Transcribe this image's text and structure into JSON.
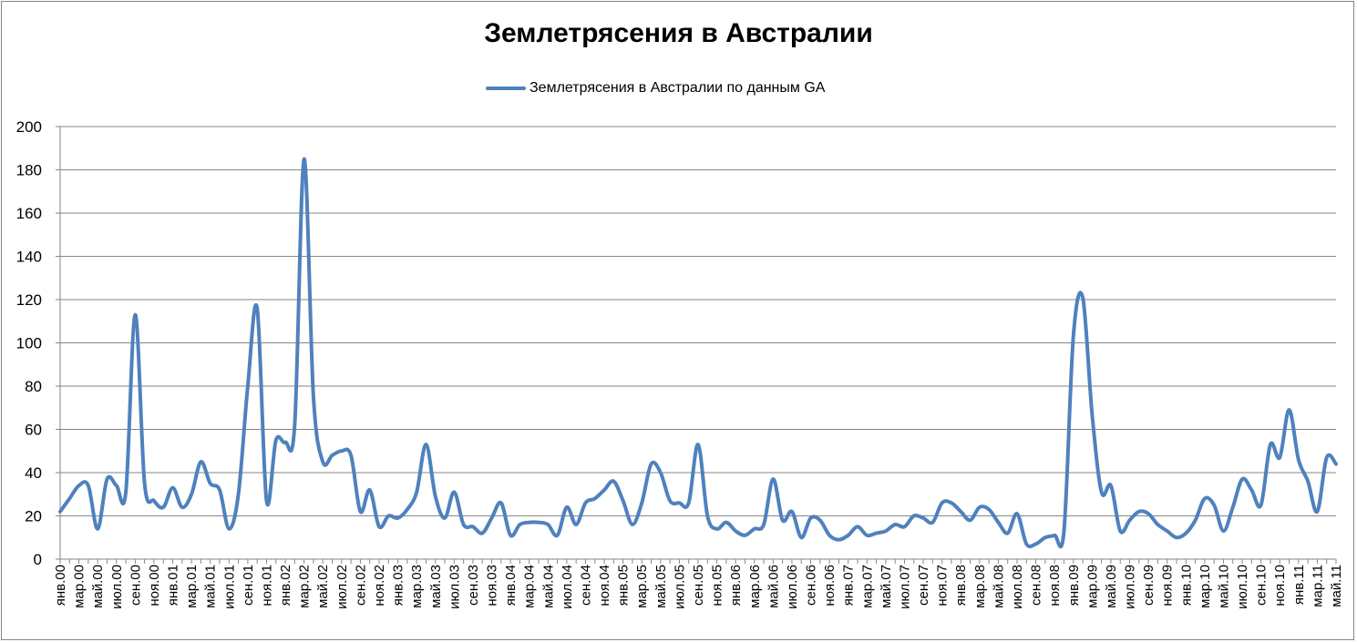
{
  "chart_data": {
    "type": "line",
    "title": "Землетрясения в Австралии",
    "legend": {
      "position": "top"
    },
    "grid": true,
    "ylim": [
      0,
      200
    ],
    "yticks": [
      0,
      20,
      40,
      60,
      80,
      100,
      120,
      140,
      160,
      180,
      200
    ],
    "color": "#4f81bd",
    "x_labels": [
      "янв.00",
      "мар.00",
      "май.00",
      "июл.00",
      "сен.00",
      "ноя.00",
      "янв.01",
      "мар.01",
      "май.01",
      "июл.01",
      "сен.01",
      "ноя.01",
      "янв.02",
      "мар.02",
      "май.02",
      "июл.02",
      "сен.02",
      "ноя.02",
      "янв.03",
      "мар.03",
      "май.03",
      "июл.03",
      "сен.03",
      "ноя.03",
      "янв.04",
      "мар.04",
      "май.04",
      "июл.04",
      "сен.04",
      "ноя.04",
      "янв.05",
      "мар.05",
      "май.05",
      "июл.05",
      "сен.05",
      "ноя.05",
      "янв.06",
      "мар.06",
      "май.06",
      "июл.06",
      "сен.06",
      "ноя.06",
      "янв.07",
      "мар.07",
      "май.07",
      "июл.07",
      "сен.07",
      "ноя.07",
      "янв.08",
      "мар.08",
      "май.08",
      "июл.08",
      "сен.08",
      "ноя.08",
      "янв.09",
      "мар.09",
      "май.09",
      "июл.09",
      "сен.09",
      "ноя.09",
      "янв.10",
      "мар.10",
      "май.10",
      "июл.10",
      "сен.10",
      "ноя.10",
      "янв.11",
      "мар.11",
      "май.11"
    ],
    "series": [
      {
        "name": "Землетрясения в Австралии по данным GA",
        "values": [
          22,
          28,
          34,
          34,
          14,
          37,
          34,
          31,
          113,
          35,
          27,
          24,
          33,
          24,
          30,
          45,
          35,
          32,
          14,
          30,
          80,
          116,
          27,
          55,
          54,
          62,
          185,
          75,
          45,
          48,
          50,
          48,
          22,
          32,
          15,
          20,
          19,
          23,
          31,
          53,
          29,
          19,
          31,
          16,
          15,
          12,
          19,
          26,
          11,
          16,
          17,
          17,
          16,
          11,
          24,
          16,
          26,
          28,
          32,
          36,
          27,
          16,
          26,
          44,
          40,
          27,
          26,
          26,
          53,
          20,
          14,
          17,
          13,
          11,
          14,
          16,
          37,
          18,
          22,
          10,
          19,
          18,
          11,
          9,
          11,
          15,
          11,
          12,
          13,
          16,
          15,
          20,
          19,
          17,
          26,
          26,
          22,
          18,
          24,
          23,
          17,
          12,
          21,
          7,
          7,
          10,
          11,
          13,
          103,
          121,
          67,
          31,
          34,
          13,
          18,
          22,
          21,
          16,
          13,
          10,
          12,
          18,
          28,
          25,
          13,
          24,
          37,
          32,
          25,
          53,
          47,
          69,
          46,
          36,
          22,
          47,
          44
        ]
      }
    ]
  }
}
